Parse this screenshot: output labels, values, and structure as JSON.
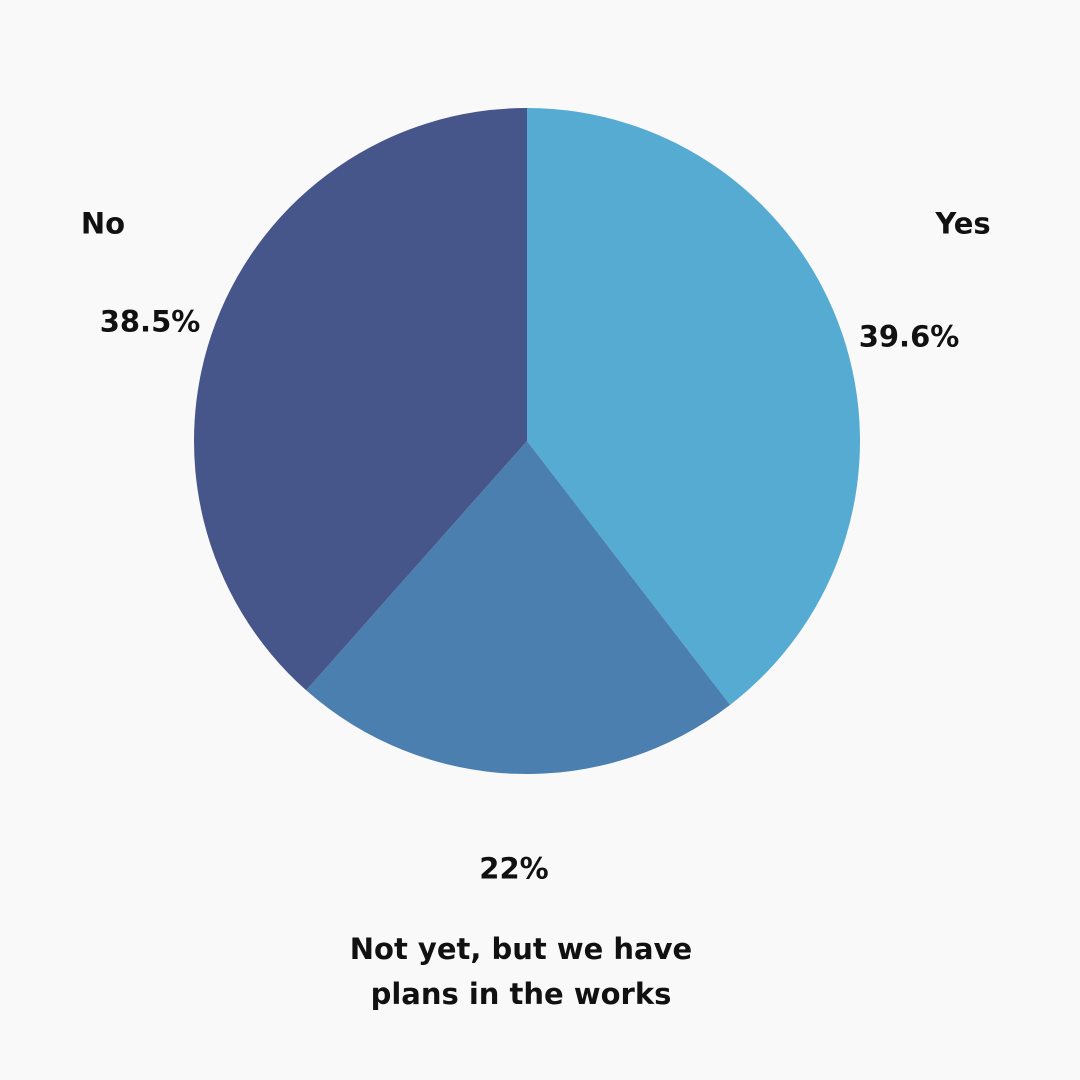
{
  "chart_data": {
    "type": "pie",
    "categories": [
      "Yes",
      "Not yet, but we have plans in the works",
      "No"
    ],
    "values": [
      39.6,
      22,
      38.5
    ],
    "value_labels": [
      "39.6%",
      "22%",
      "38.5%"
    ],
    "colors": [
      "#56abd3",
      "#4a7fb0",
      "#46558a"
    ]
  }
}
